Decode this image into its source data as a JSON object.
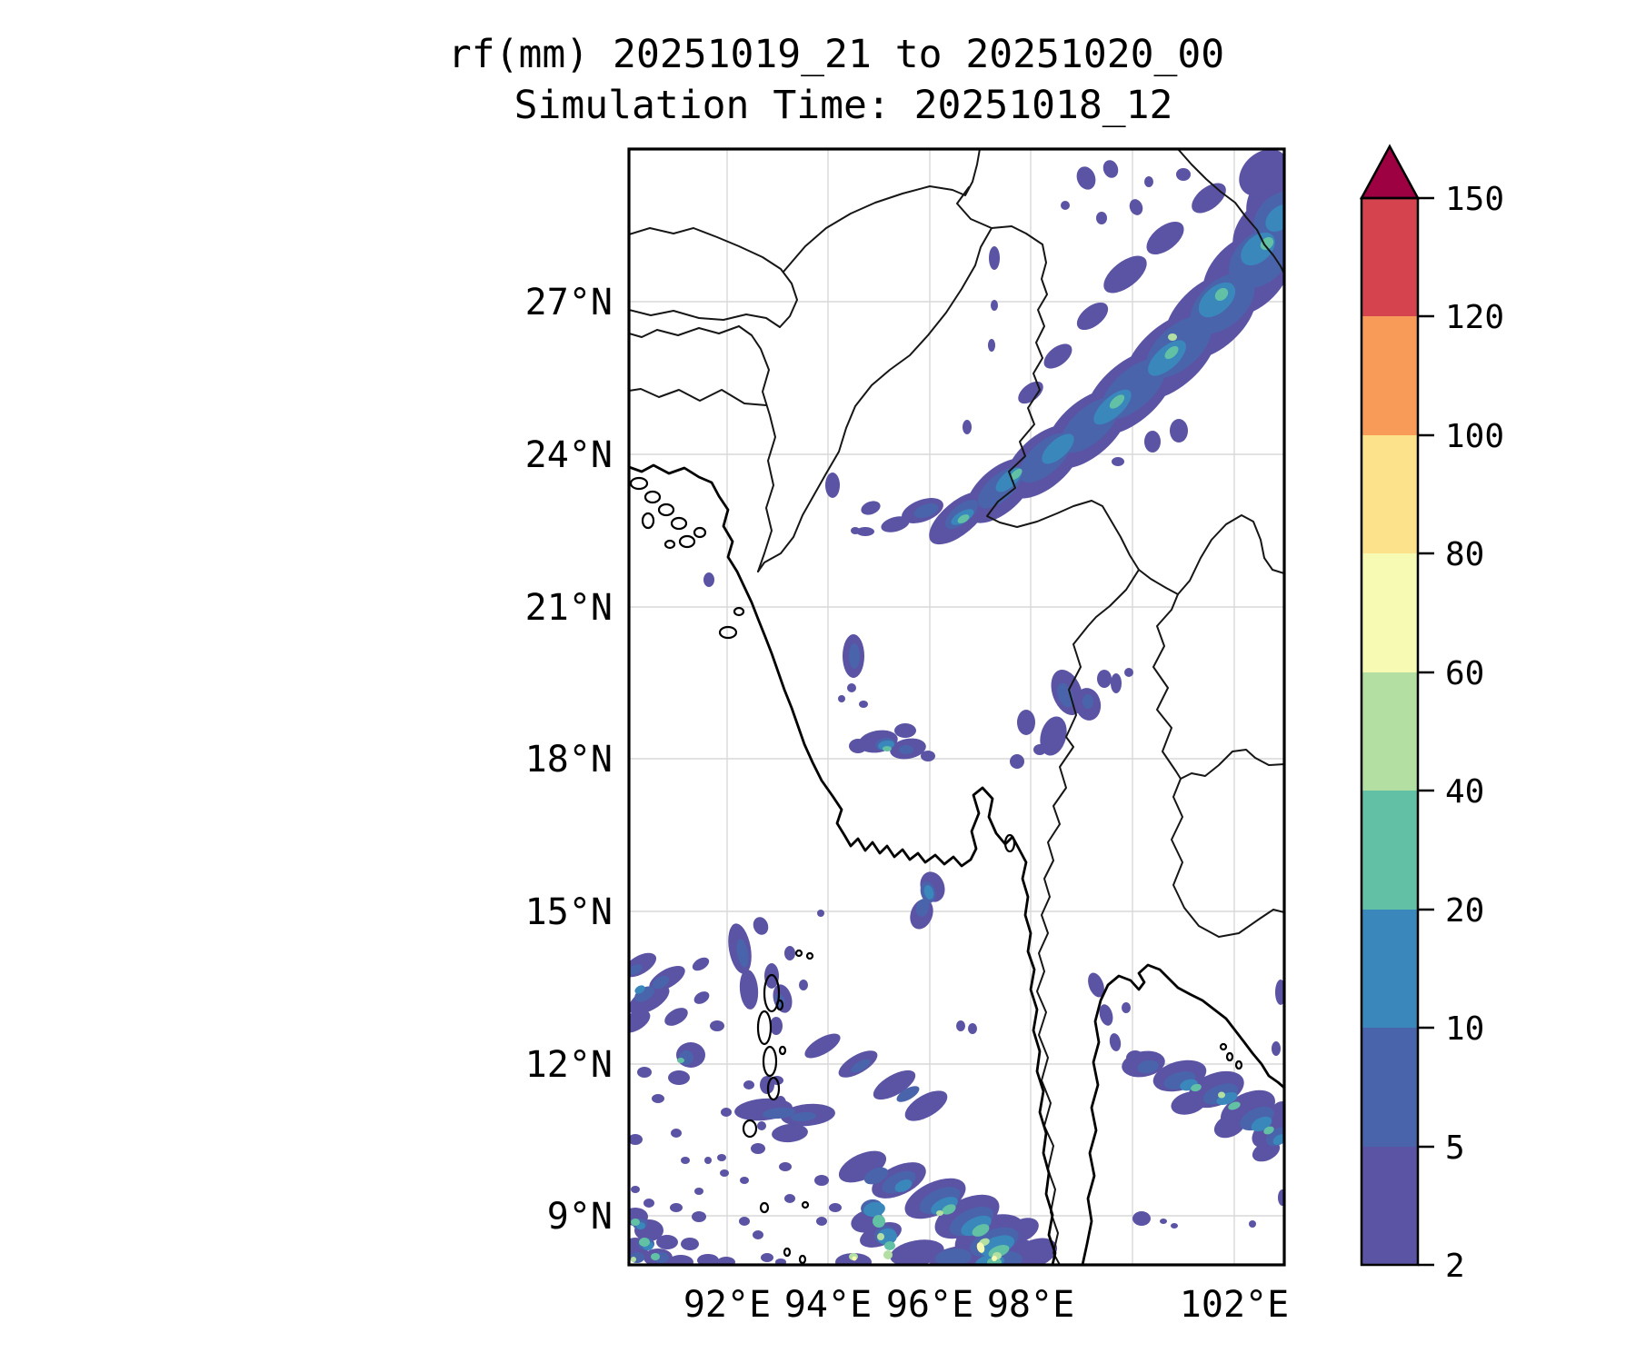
{
  "title": {
    "line1": "rf(mm) 20251019_21 to 20251020_00",
    "line2": "Simulation Time: 20251018_12"
  },
  "axes": {
    "x_tick_labels": [
      "92°E",
      "94°E",
      "96°E",
      "98°E",
      "102°E"
    ],
    "y_tick_labels": [
      "27°N",
      "24°N",
      "21°N",
      "18°N",
      "15°N",
      "12°N",
      "9°N"
    ]
  },
  "colorbar": {
    "units": "mm",
    "tick_labels_top_to_bottom": [
      "150",
      "120",
      "100",
      "80",
      "60",
      "40",
      "20",
      "10",
      "5",
      "2"
    ],
    "levels": [
      2,
      5,
      10,
      20,
      40,
      60,
      80,
      100,
      120,
      150
    ],
    "segment_colors_low_to_high": [
      "#5B53A4",
      "#4A64AC",
      "#3A87BC",
      "#62C1A5",
      "#B3E0A2",
      "#F6FAB2",
      "#FDE28C",
      "#F99B58",
      "#D5434E"
    ],
    "extend_over_color": "#9E0142"
  },
  "chart_data": {
    "type": "heatmap",
    "variable": "rf",
    "units": "mm",
    "accumulation_period": "20251019_21 to 20251020_00",
    "simulation_time": "20251018_12",
    "projection_domain": {
      "lon_range": [
        90,
        103
      ],
      "lat_range": [
        8,
        30
      ]
    },
    "contour_levels": [
      2,
      5,
      10,
      20,
      40,
      60,
      80,
      100,
      120,
      150
    ],
    "palette": "Spectral reversed, discrete, extended above 150",
    "grid": {
      "lon_gridlines_deg": [
        92,
        94,
        96,
        98,
        100,
        102
      ],
      "lat_gridlines_deg": [
        27,
        24,
        21,
        18,
        15,
        12,
        9
      ]
    },
    "rain_regions": [
      {
        "name": "northeast diagonal band (Kachin / Yunnan)",
        "extent": "96.5-103°E, 23.5-30°N",
        "typical_bin_mm": "2-20",
        "max_bin_mm": "40-60"
      },
      {
        "name": "small dashes west-central Myanmar",
        "extent": "92-95°E, 20-23°N",
        "max_bin_mm": "2-5"
      },
      {
        "name": "central patch south of delta",
        "extent": "94.5-96.5°E, 15.5-18.5°N",
        "max_bin_mm": "20-40"
      },
      {
        "name": "eastern Shan / Thai border patches",
        "extent": "97.5-100°E, 18-20°N",
        "max_bin_mm": "5-10"
      },
      {
        "name": "Andaman Sea / southern system",
        "extent": "90-99°E, 8-13.5°N",
        "typical_bin_mm": "2-20",
        "max_bin_mm": "60-100"
      },
      {
        "name": "Gulf of Thailand band",
        "extent": "99.5-103°E, 10.5-12.5°N",
        "max_bin_mm": "40-60"
      },
      {
        "name": "bottom-left corner cluster",
        "extent": "90-92.5°E, 8-9.5°N",
        "max_bin_mm": "40-60"
      }
    ]
  }
}
